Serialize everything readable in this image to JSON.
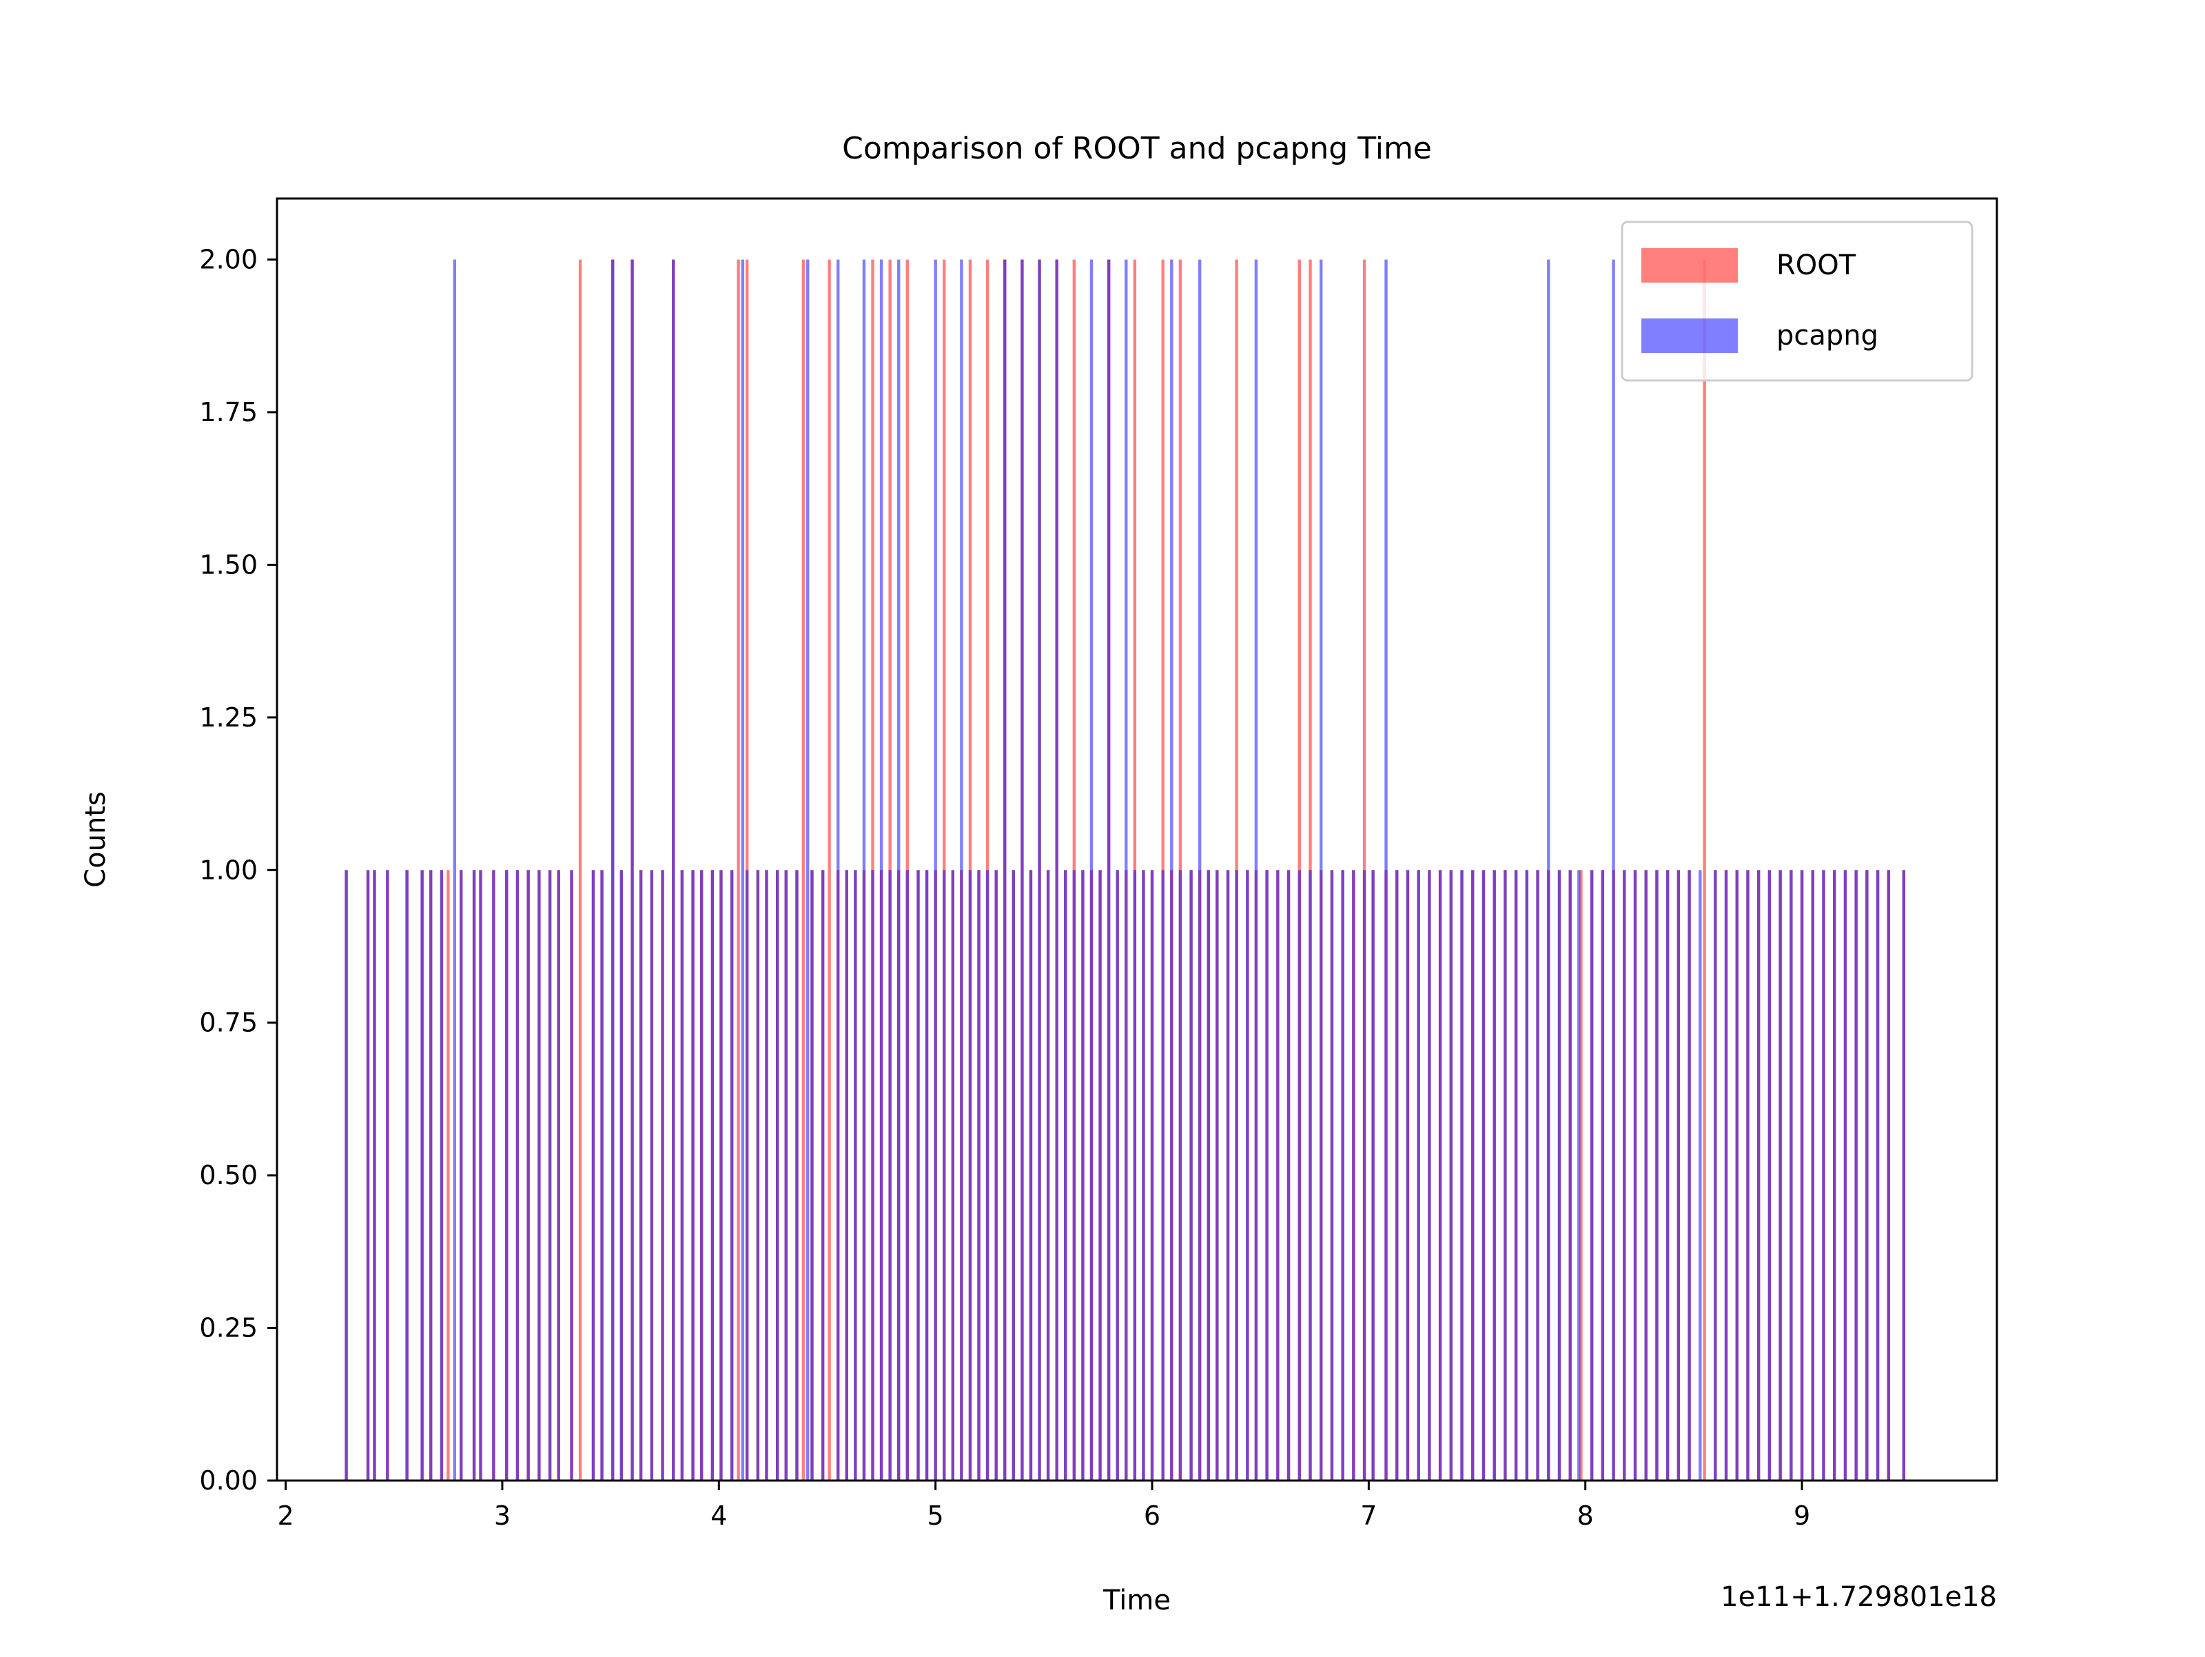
{
  "chart_data": {
    "type": "bar",
    "title": "Comparison of ROOT and pcapng Time",
    "xlabel": "Time",
    "ylabel": "Counts",
    "x_offset_text": "1e11+1.729801e18",
    "xlim": [
      1.96,
      9.9
    ],
    "ylim": [
      0,
      2.1
    ],
    "xticks": [
      2,
      3,
      4,
      5,
      6,
      7,
      8,
      9
    ],
    "xtick_labels": [
      "2",
      "3",
      "4",
      "5",
      "6",
      "7",
      "8",
      "9"
    ],
    "yticks": [
      0,
      0.25,
      0.5,
      0.75,
      1.0,
      1.25,
      1.5,
      1.75,
      2.0
    ],
    "ytick_labels": [
      "0.00",
      "0.25",
      "0.50",
      "0.75",
      "1.00",
      "1.25",
      "1.50",
      "1.75",
      "2.00"
    ],
    "grid": false,
    "legend_position": "top-right",
    "bin_width": 0.014,
    "series": [
      {
        "name": "ROOT",
        "color": "#ff0000",
        "alpha": 0.5,
        "x": [
          2.28,
          2.38,
          2.41,
          2.47,
          2.56,
          2.63,
          2.67,
          2.72,
          2.75,
          2.81,
          2.87,
          2.9,
          2.96,
          3.02,
          3.07,
          3.12,
          3.17,
          3.22,
          3.26,
          3.32,
          3.36,
          3.42,
          3.46,
          3.51,
          3.55,
          3.6,
          3.64,
          3.69,
          3.74,
          3.79,
          3.83,
          3.88,
          3.92,
          3.97,
          4.01,
          4.06,
          4.09,
          4.13,
          4.18,
          4.22,
          4.27,
          4.31,
          4.36,
          4.39,
          4.43,
          4.48,
          4.51,
          4.55,
          4.59,
          4.63,
          4.67,
          4.71,
          4.75,
          4.79,
          4.83,
          4.87,
          4.92,
          4.96,
          5.0,
          5.04,
          5.08,
          5.12,
          5.16,
          5.2,
          5.24,
          5.28,
          5.32,
          5.36,
          5.4,
          5.44,
          5.48,
          5.52,
          5.56,
          5.6,
          5.64,
          5.68,
          5.72,
          5.76,
          5.8,
          5.84,
          5.88,
          5.92,
          5.96,
          6.0,
          6.05,
          6.09,
          6.13,
          6.18,
          6.22,
          6.26,
          6.3,
          6.35,
          6.39,
          6.44,
          6.48,
          6.53,
          6.58,
          6.63,
          6.68,
          6.73,
          6.78,
          6.83,
          6.88,
          6.93,
          6.98,
          7.02,
          7.08,
          7.13,
          7.18,
          7.23,
          7.28,
          7.33,
          7.38,
          7.43,
          7.48,
          7.53,
          7.58,
          7.63,
          7.68,
          7.73,
          7.78,
          7.83,
          7.88,
          7.93,
          7.98,
          8.03,
          8.08,
          8.13,
          8.18,
          8.23,
          8.28,
          8.33,
          8.38,
          8.43,
          8.48,
          8.55,
          8.6,
          8.65,
          8.7,
          8.75,
          8.8,
          8.85,
          8.9,
          8.95,
          9.0,
          9.05,
          9.1,
          9.15,
          9.2,
          9.25,
          9.3,
          9.35,
          9.4,
          9.47
        ],
        "values": [
          1,
          1,
          1,
          1,
          1,
          1,
          1,
          1,
          1,
          1,
          1,
          1,
          1,
          1,
          1,
          1,
          1,
          1,
          1,
          1,
          2,
          1,
          1,
          2,
          1,
          2,
          1,
          1,
          1,
          2,
          1,
          1,
          1,
          1,
          1,
          1,
          2,
          2,
          1,
          1,
          1,
          1,
          1,
          2,
          1,
          1,
          2,
          1,
          1,
          1,
          1,
          2,
          1,
          2,
          1,
          2,
          1,
          1,
          1,
          2,
          1,
          1,
          2,
          1,
          2,
          1,
          2,
          1,
          2,
          1,
          2,
          1,
          2,
          1,
          2,
          1,
          1,
          1,
          2,
          1,
          1,
          2,
          1,
          1,
          2,
          1,
          2,
          1,
          1,
          1,
          1,
          1,
          2,
          1,
          1,
          1,
          1,
          1,
          2,
          2,
          1,
          1,
          1,
          1,
          2,
          1,
          1,
          1,
          1,
          1,
          1,
          1,
          1,
          1,
          1,
          1,
          1,
          1,
          1,
          1,
          1,
          1,
          1,
          1,
          1,
          1,
          1,
          1,
          1,
          1,
          1,
          1,
          1,
          1,
          1,
          2,
          1,
          1,
          1,
          1,
          1,
          1,
          1,
          1,
          1,
          1,
          1,
          1,
          1,
          1,
          1,
          1,
          1,
          1
        ]
      },
      {
        "name": "pcapng",
        "color": "#0000ff",
        "alpha": 0.5,
        "x": [
          2.28,
          2.38,
          2.41,
          2.47,
          2.56,
          2.63,
          2.67,
          2.72,
          2.78,
          2.81,
          2.87,
          2.9,
          2.96,
          3.02,
          3.07,
          3.12,
          3.17,
          3.22,
          3.26,
          3.32,
          3.42,
          3.46,
          3.51,
          3.55,
          3.6,
          3.64,
          3.69,
          3.74,
          3.79,
          3.83,
          3.88,
          3.92,
          3.97,
          4.01,
          4.06,
          4.11,
          4.13,
          4.18,
          4.22,
          4.27,
          4.31,
          4.36,
          4.41,
          4.43,
          4.48,
          4.55,
          4.59,
          4.63,
          4.67,
          4.71,
          4.75,
          4.79,
          4.83,
          4.87,
          4.92,
          4.96,
          5.0,
          5.04,
          5.08,
          5.12,
          5.16,
          5.2,
          5.24,
          5.28,
          5.32,
          5.36,
          5.4,
          5.44,
          5.48,
          5.52,
          5.56,
          5.6,
          5.64,
          5.68,
          5.72,
          5.76,
          5.8,
          5.84,
          5.88,
          5.92,
          5.96,
          6.0,
          6.05,
          6.09,
          6.13,
          6.18,
          6.22,
          6.26,
          6.3,
          6.35,
          6.39,
          6.44,
          6.48,
          6.53,
          6.58,
          6.63,
          6.68,
          6.73,
          6.78,
          6.83,
          6.88,
          6.93,
          6.98,
          7.02,
          7.08,
          7.13,
          7.18,
          7.23,
          7.28,
          7.33,
          7.38,
          7.43,
          7.48,
          7.53,
          7.58,
          7.63,
          7.68,
          7.73,
          7.78,
          7.83,
          7.88,
          7.93,
          7.97,
          8.03,
          8.08,
          8.13,
          8.18,
          8.23,
          8.28,
          8.33,
          8.38,
          8.43,
          8.48,
          8.53,
          8.6,
          8.65,
          8.7,
          8.75,
          8.8,
          8.85,
          8.9,
          8.95,
          9.0,
          9.05,
          9.1,
          9.15,
          9.2,
          9.25,
          9.3,
          9.35,
          9.4,
          9.47
        ],
        "values": [
          1,
          1,
          1,
          1,
          1,
          1,
          1,
          1,
          2,
          1,
          1,
          1,
          1,
          1,
          1,
          1,
          1,
          1,
          1,
          1,
          1,
          1,
          2,
          1,
          2,
          1,
          1,
          1,
          2,
          1,
          1,
          1,
          1,
          1,
          1,
          2,
          1,
          1,
          1,
          1,
          1,
          1,
          2,
          1,
          1,
          2,
          1,
          1,
          2,
          1,
          2,
          1,
          2,
          1,
          1,
          1,
          2,
          1,
          1,
          2,
          1,
          1,
          1,
          1,
          2,
          1,
          2,
          1,
          2,
          1,
          2,
          1,
          1,
          1,
          2,
          1,
          2,
          1,
          2,
          1,
          1,
          1,
          1,
          2,
          1,
          1,
          2,
          1,
          1,
          1,
          1,
          1,
          2,
          1,
          1,
          1,
          1,
          1,
          2,
          1,
          1,
          1,
          1,
          1,
          2,
          1,
          1,
          1,
          1,
          1,
          1,
          1,
          1,
          1,
          1,
          1,
          1,
          1,
          1,
          2,
          1,
          1,
          1,
          1,
          1,
          2,
          1,
          1,
          1,
          1,
          1,
          1,
          1,
          1,
          1,
          1,
          1,
          1,
          1,
          1,
          1,
          1,
          1,
          1,
          1,
          1,
          1,
          1,
          1,
          1,
          1,
          1
        ]
      }
    ]
  }
}
